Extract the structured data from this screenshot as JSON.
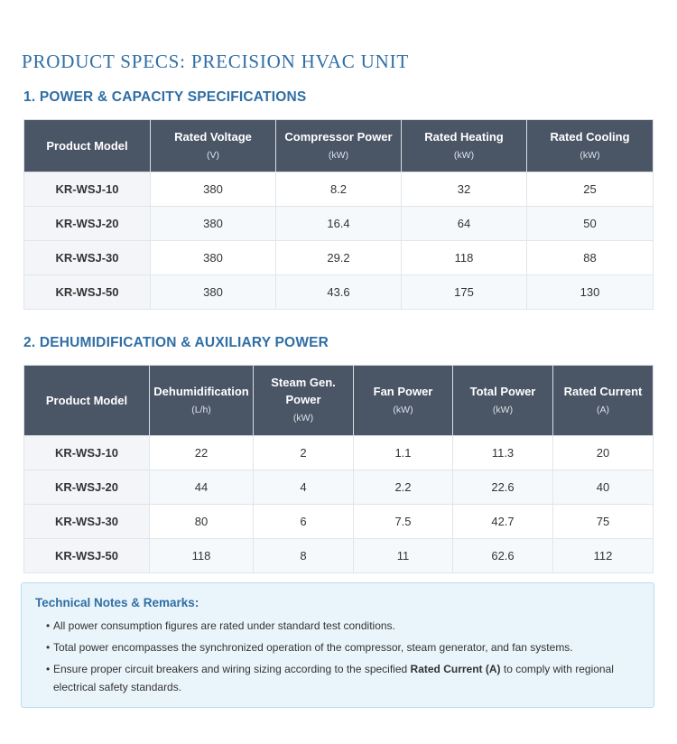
{
  "page_title": "PRODUCT SPECS: PRECISION HVAC UNIT",
  "section1": {
    "title": "1. POWER & CAPACITY SPECIFICATIONS",
    "headers": [
      {
        "label": "Product Model",
        "unit": ""
      },
      {
        "label": "Rated Voltage",
        "unit": "(V)"
      },
      {
        "label": "Compressor Power",
        "unit": "(kW)"
      },
      {
        "label": "Rated Heating",
        "unit": "(kW)"
      },
      {
        "label": "Rated Cooling",
        "unit": "(kW)"
      }
    ],
    "rows": [
      [
        "KR-WSJ-10",
        "380",
        "8.2",
        "32",
        "25"
      ],
      [
        "KR-WSJ-20",
        "380",
        "16.4",
        "64",
        "50"
      ],
      [
        "KR-WSJ-30",
        "380",
        "29.2",
        "118",
        "88"
      ],
      [
        "KR-WSJ-50",
        "380",
        "43.6",
        "175",
        "130"
      ]
    ]
  },
  "section2": {
    "title": "2. DEHUMIDIFICATION & AUXILIARY POWER",
    "headers": [
      {
        "label": "Product Model",
        "unit": ""
      },
      {
        "label": "Dehumidification",
        "unit": "(L/h)"
      },
      {
        "label": "Steam Gen. Power",
        "unit": "(kW)"
      },
      {
        "label": "Fan Power",
        "unit": "(kW)"
      },
      {
        "label": "Total Power",
        "unit": "(kW)"
      },
      {
        "label": "Rated Current",
        "unit": "(A)"
      }
    ],
    "rows": [
      [
        "KR-WSJ-10",
        "22",
        "2",
        "1.1",
        "11.3",
        "20"
      ],
      [
        "KR-WSJ-20",
        "44",
        "4",
        "2.2",
        "22.6",
        "40"
      ],
      [
        "KR-WSJ-30",
        "80",
        "6",
        "7.5",
        "42.7",
        "75"
      ],
      [
        "KR-WSJ-50",
        "118",
        "8",
        "11",
        "62.6",
        "112"
      ]
    ]
  },
  "notes": {
    "title": "Technical Notes & Remarks:",
    "items": [
      {
        "before": "All power consumption figures are rated under standard test conditions.",
        "bold": "",
        "after": ""
      },
      {
        "before": "Total power encompasses the synchronized operation of the compressor, steam generator, and fan systems.",
        "bold": "",
        "after": ""
      },
      {
        "before": "Ensure proper circuit breakers and wiring sizing according to the specified ",
        "bold": "Rated Current (A)",
        "after": " to comply with regional electrical safety standards."
      }
    ]
  }
}
